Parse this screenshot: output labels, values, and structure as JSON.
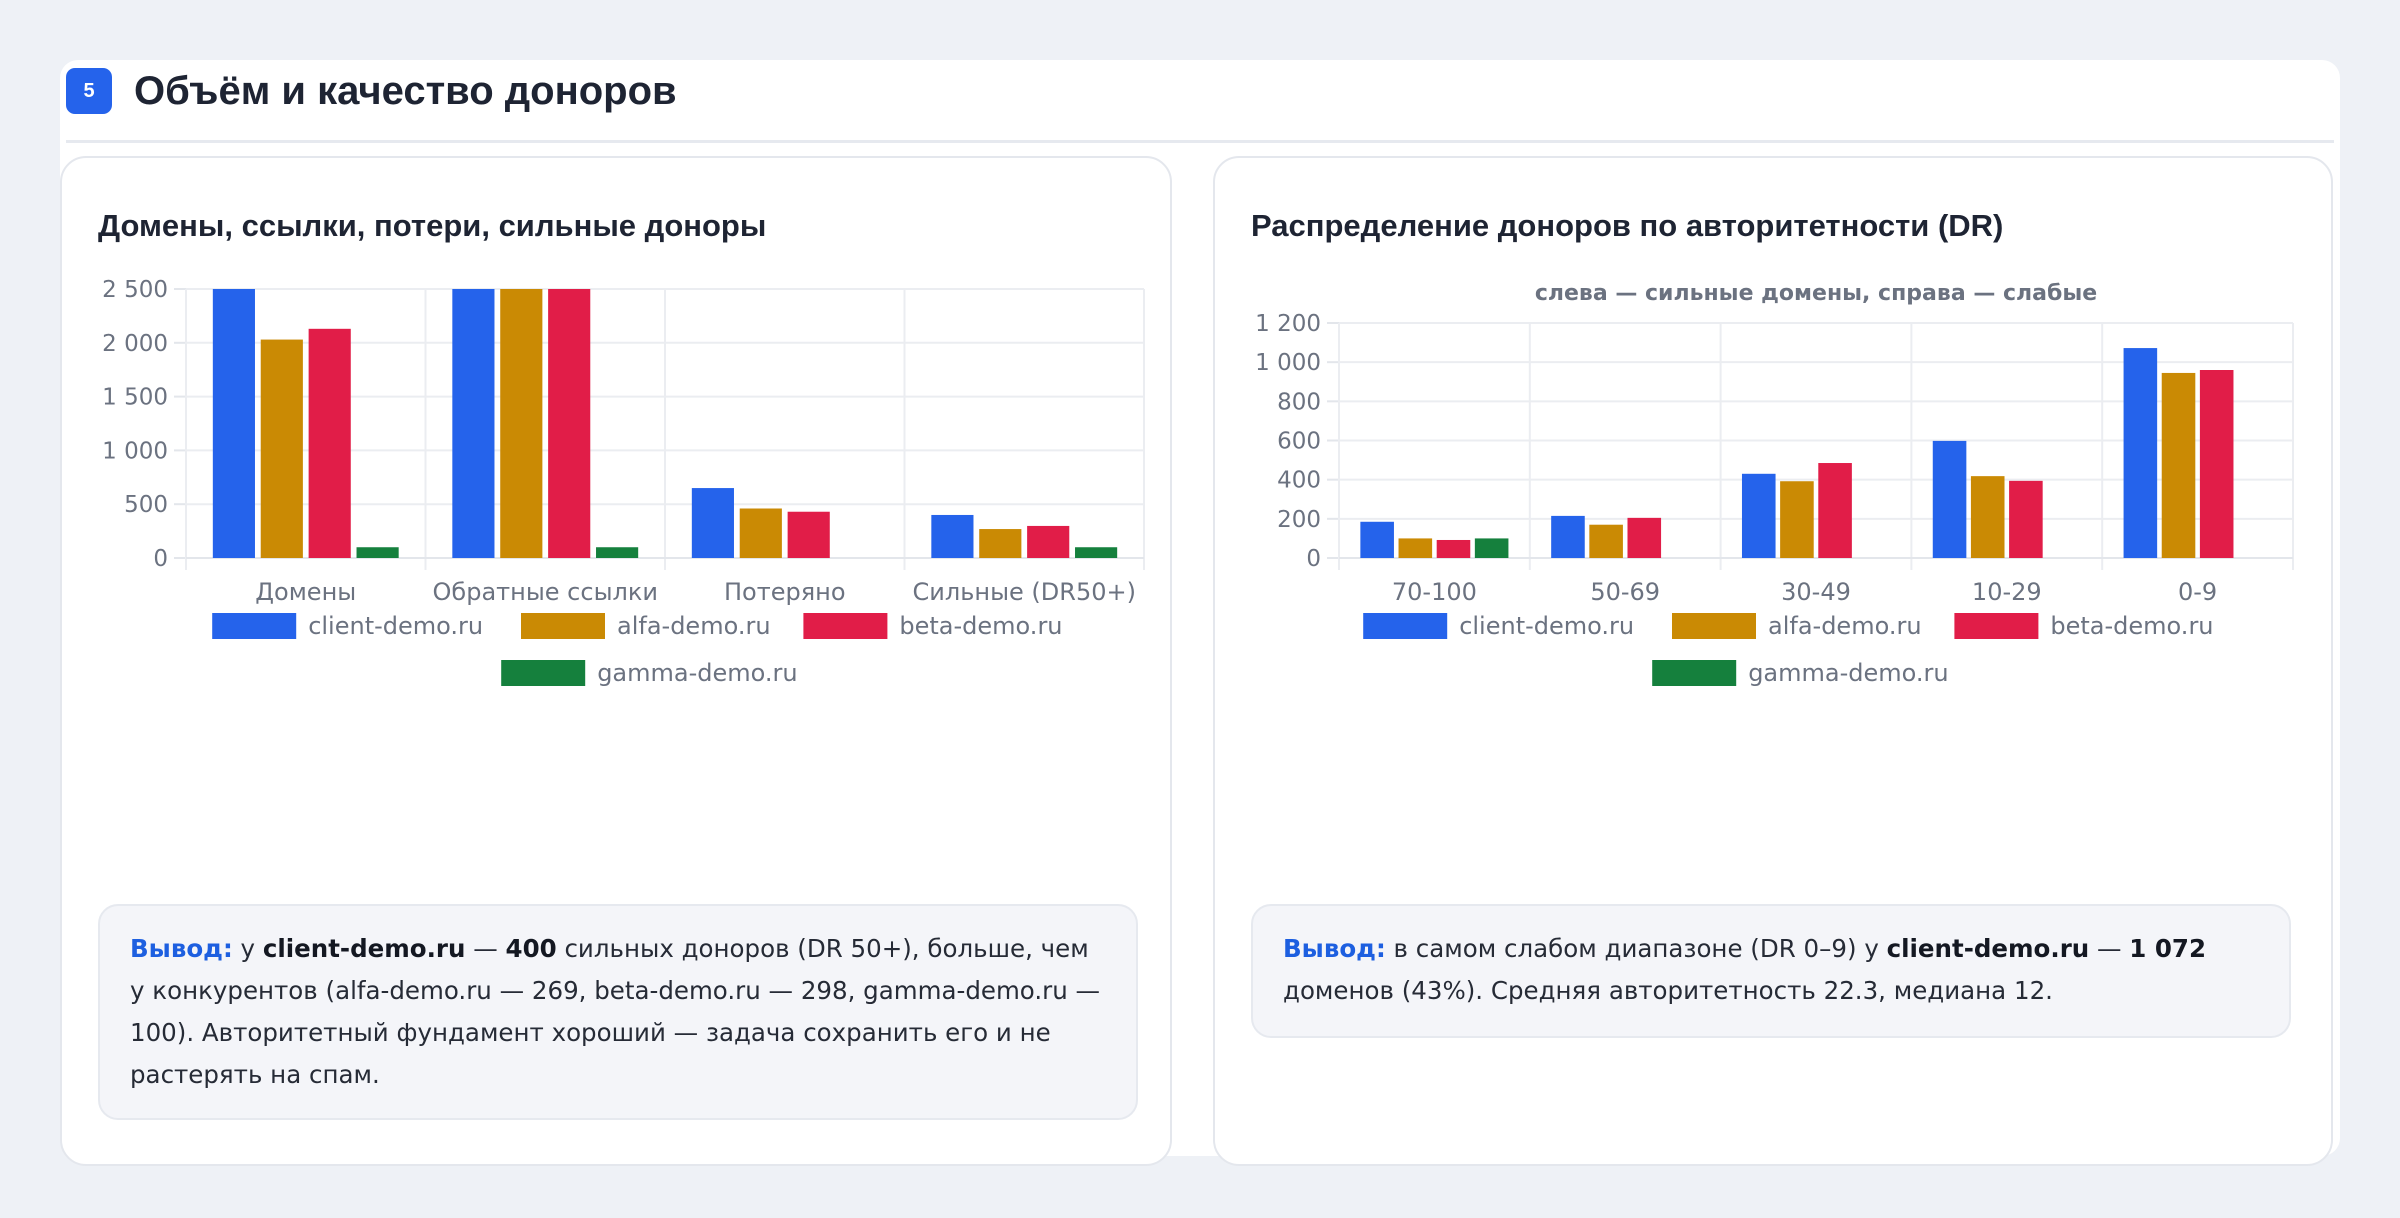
{
  "section": {
    "number": "5",
    "title": "Объём и качество доноров"
  },
  "left_card": {
    "title": "Домены, ссылки, потери, сильные доноры",
    "conclusion": {
      "lead": "Вывод:",
      "t1": " у ",
      "b1": "client-demo.ru",
      "t2": " — ",
      "b2": "400",
      "t3": " сильных доноров (DR 50+), больше, чем у конкурентов (alfa-demo.ru — 269, beta-demo.ru — 298, gamma-demo.ru — 100). Авторитетный фундамент хороший — задача сохранить его и не растерять на спам."
    }
  },
  "right_card": {
    "title": "Распределение доноров по авторитетности (DR)",
    "conclusion": {
      "lead": "Вывод:",
      "t1": " в самом слабом диапазоне (DR 0–9) у ",
      "b1": "client-demo.ru",
      "t2": " — ",
      "b2": "1 072",
      "t3": " доменов (43%). Средняя авторитетность 22.3, медиана 12."
    }
  },
  "chart_data": [
    {
      "type": "bar",
      "categories": [
        "Домены",
        "Обратные ссылки",
        "Потеряно",
        "Сильные (DR50+)"
      ],
      "series": [
        {
          "name": "client-demo.ru",
          "color": "#2563eb",
          "values": [
            2500,
            2500,
            650,
            400
          ]
        },
        {
          "name": "alfa-demo.ru",
          "color": "#ca8a04",
          "values": [
            2030,
            2500,
            460,
            269
          ]
        },
        {
          "name": "beta-demo.ru",
          "color": "#e11d48",
          "values": [
            2130,
            2500,
            430,
            298
          ]
        },
        {
          "name": "gamma-demo.ru",
          "color": "#15803d",
          "values": [
            100,
            100,
            0,
            100
          ]
        }
      ],
      "ylim": [
        0,
        2500
      ],
      "yticks": [
        0,
        500,
        1000,
        1500,
        2000,
        2500
      ],
      "ytick_labels": [
        "0",
        "500",
        "1 000",
        "1 500",
        "2 000",
        "2 500"
      ],
      "grid": true,
      "legend_position": "bottom"
    },
    {
      "type": "bar",
      "subtitle": "слева — сильные домены, справа — слабые",
      "categories": [
        "70-100",
        "50-69",
        "30-49",
        "10-29",
        "0-9"
      ],
      "series": [
        {
          "name": "client-demo.ru",
          "color": "#2563eb",
          "values": [
            185,
            215,
            430,
            598,
            1072
          ]
        },
        {
          "name": "alfa-demo.ru",
          "color": "#ca8a04",
          "values": [
            100,
            170,
            392,
            418,
            945
          ]
        },
        {
          "name": "beta-demo.ru",
          "color": "#e11d48",
          "values": [
            92,
            205,
            485,
            394,
            960
          ]
        },
        {
          "name": "gamma-demo.ru",
          "color": "#15803d",
          "values": [
            100,
            0,
            0,
            0,
            0
          ]
        }
      ],
      "ylim": [
        0,
        1200
      ],
      "yticks": [
        0,
        200,
        400,
        600,
        800,
        1000,
        1200
      ],
      "ytick_labels": [
        "0",
        "200",
        "400",
        "600",
        "800",
        "1 000",
        "1 200"
      ],
      "grid": true,
      "legend_position": "bottom"
    }
  ]
}
